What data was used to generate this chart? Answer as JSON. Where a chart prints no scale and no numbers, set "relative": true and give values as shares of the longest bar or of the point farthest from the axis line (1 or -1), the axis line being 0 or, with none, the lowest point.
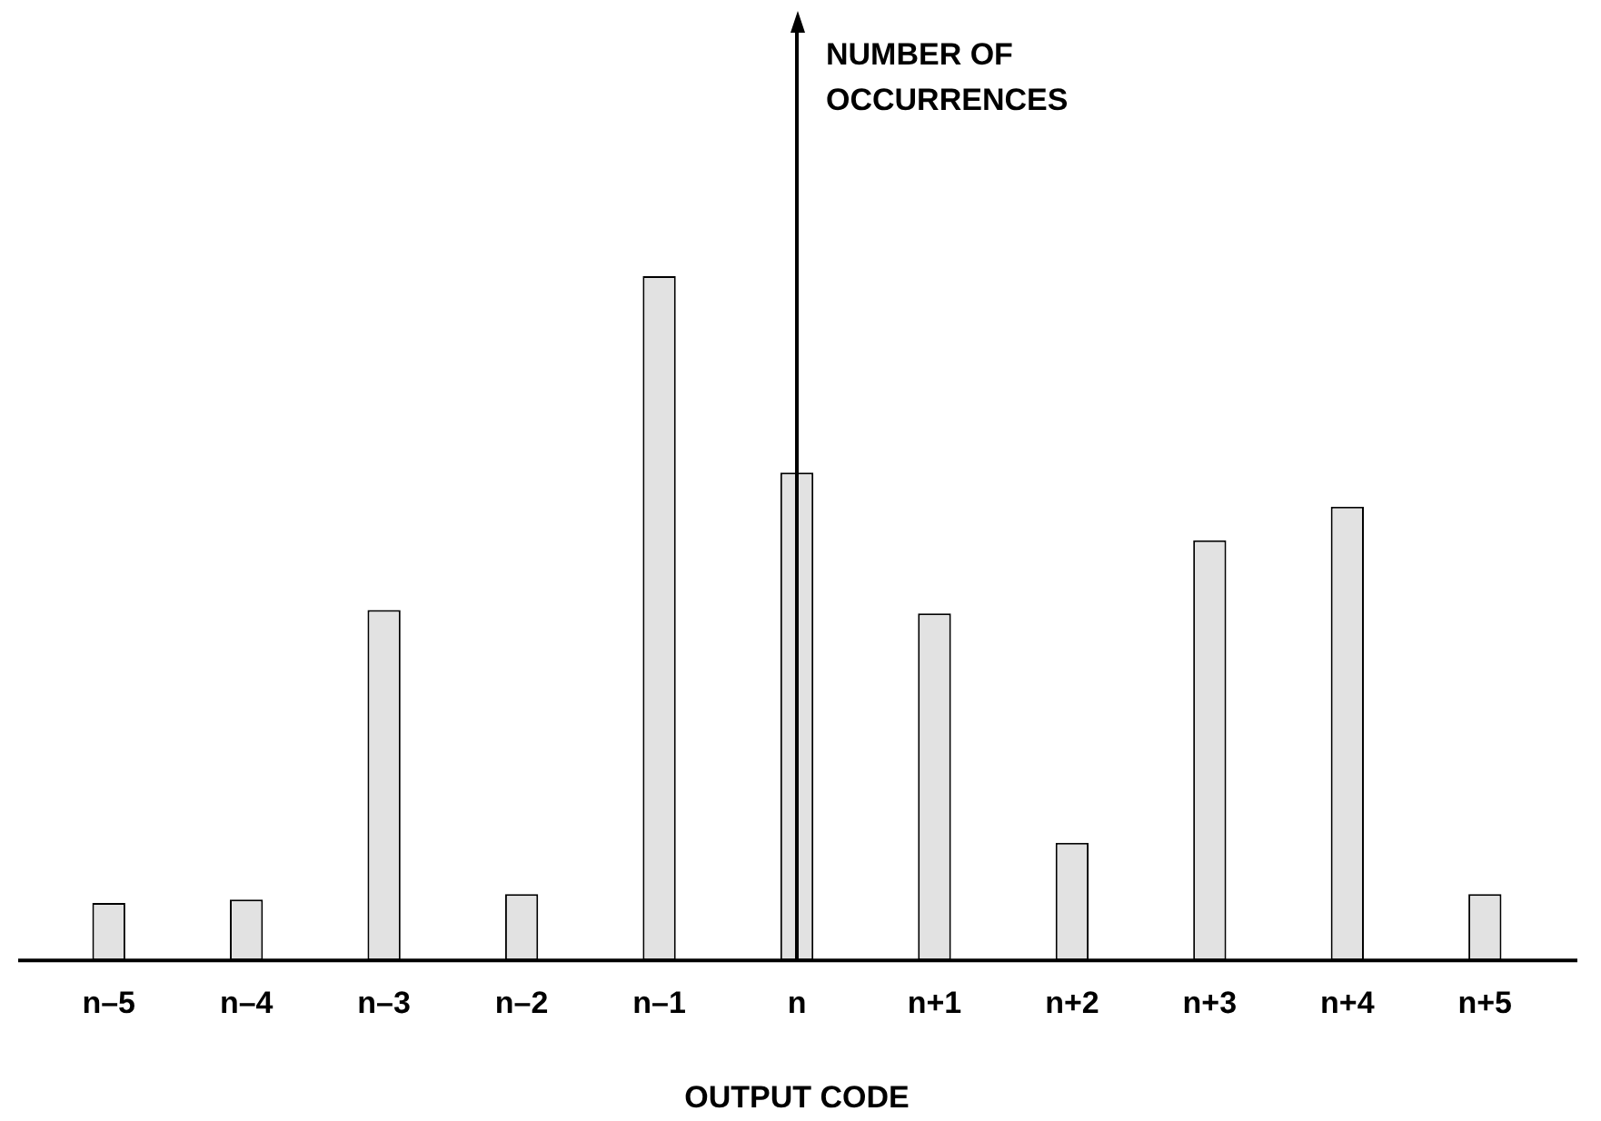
{
  "chart_data": {
    "type": "bar",
    "relative": true,
    "xlabel": "OUTPUT CODE",
    "ref_lines": [
      {
        "axis": "x",
        "value": "n",
        "color": "#000000"
      }
    ],
    "annotations": [
      "NUMBER OF OCCURRENCES"
    ],
    "categories": [
      "n–5",
      "n–4",
      "n–3",
      "n–2",
      "n–1",
      "n",
      "n+1",
      "n+2",
      "n+3",
      "n+4",
      "n+5"
    ],
    "values": [
      0.084,
      0.089,
      0.512,
      0.097,
      1,
      0.713,
      0.507,
      0.172,
      0.614,
      0.663,
      0.097
    ],
    "color": "#e2e2e2",
    "grid": false,
    "legend": false
  }
}
